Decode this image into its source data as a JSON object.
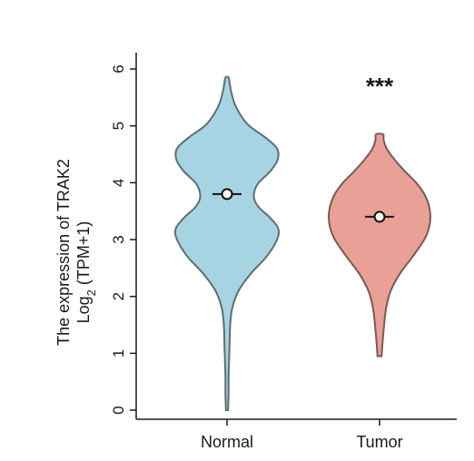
{
  "chart_data": {
    "type": "violin",
    "title": "",
    "ylabel_line1": "The expression of TRAK2",
    "ylabel_line2_main": "Log",
    "ylabel_line2_sub": "2",
    "ylabel_line2_rest": " (TPM+1)",
    "xlabel": "",
    "ylim": [
      0,
      6
    ],
    "yticks": [
      "0",
      "1",
      "2",
      "3",
      "4",
      "5",
      "6"
    ],
    "categories": [
      "Normal",
      "Tumor"
    ],
    "series": [
      {
        "category": "Normal",
        "color": "#a6d4e2",
        "edge_color": "#5e6e74",
        "median": 3.8,
        "min": 0.0,
        "max": 5.85,
        "profile": [
          [
            0.0,
            0.02
          ],
          [
            0.3,
            0.03
          ],
          [
            0.6,
            0.03
          ],
          [
            0.9,
            0.04
          ],
          [
            1.2,
            0.05
          ],
          [
            1.5,
            0.06
          ],
          [
            1.8,
            0.1
          ],
          [
            2.1,
            0.22
          ],
          [
            2.4,
            0.45
          ],
          [
            2.7,
            0.75
          ],
          [
            3.0,
            0.95
          ],
          [
            3.2,
            0.97
          ],
          [
            3.4,
            0.8
          ],
          [
            3.55,
            0.62
          ],
          [
            3.7,
            0.52
          ],
          [
            3.85,
            0.52
          ],
          [
            4.0,
            0.6
          ],
          [
            4.2,
            0.82
          ],
          [
            4.4,
            0.96
          ],
          [
            4.6,
            0.95
          ],
          [
            4.8,
            0.72
          ],
          [
            5.0,
            0.42
          ],
          [
            5.2,
            0.25
          ],
          [
            5.4,
            0.14
          ],
          [
            5.6,
            0.08
          ],
          [
            5.75,
            0.05
          ],
          [
            5.85,
            0.03
          ]
        ]
      },
      {
        "category": "Tumor",
        "color": "#e9a096",
        "edge_color": "#7a5a55",
        "median": 3.4,
        "min": 0.95,
        "max": 4.85,
        "profile": [
          [
            0.95,
            0.04
          ],
          [
            1.2,
            0.06
          ],
          [
            1.5,
            0.09
          ],
          [
            1.8,
            0.13
          ],
          [
            2.1,
            0.22
          ],
          [
            2.4,
            0.4
          ],
          [
            2.7,
            0.65
          ],
          [
            3.0,
            0.88
          ],
          [
            3.2,
            0.97
          ],
          [
            3.4,
            1.0
          ],
          [
            3.6,
            0.97
          ],
          [
            3.8,
            0.88
          ],
          [
            4.0,
            0.72
          ],
          [
            4.2,
            0.5
          ],
          [
            4.4,
            0.3
          ],
          [
            4.6,
            0.14
          ],
          [
            4.75,
            0.08
          ],
          [
            4.85,
            0.07
          ]
        ]
      }
    ],
    "annotation": "***",
    "grid": false
  }
}
